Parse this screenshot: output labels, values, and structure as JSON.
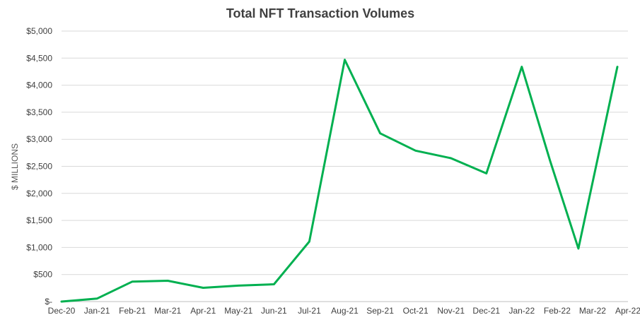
{
  "colors": {
    "series": "#00b050",
    "gridline": "#d9d9d9",
    "text": "#404040"
  },
  "chart_data": {
    "type": "line",
    "title": "Total NFT Transaction Volumes",
    "xlabel": "",
    "ylabel": "$ MILLIONS",
    "categories": [
      "Dec-20",
      "Jan-21",
      "Feb-21",
      "Mar-21",
      "Apr-21",
      "May-21",
      "Jun-21",
      "Jul-21",
      "Aug-21",
      "Sep-21",
      "Oct-21",
      "Nov-21",
      "Dec-21",
      "Jan-22",
      "Feb-22",
      "Mar-22",
      "Apr-22"
    ],
    "x": [
      "Dec-20",
      "Jan-21",
      "Feb-21",
      "Mar-21",
      "Apr-21",
      "May-21",
      "Jun-21",
      "Jul-21",
      "Aug-21",
      "Sep-21",
      "Oct-21",
      "Nov-21",
      "Dec-21",
      "Jan-22",
      "Feb-22",
      "Feb-22/Mar-22",
      "Mar-22/Apr-22"
    ],
    "series": [
      {
        "name": "",
        "values": [
          0,
          55,
          370,
          385,
          255,
          295,
          320,
          1110,
          4470,
          3110,
          2790,
          2650,
          2370,
          4340,
          2600,
          980,
          4340
        ]
      }
    ],
    "x_positions": [
      0,
      1,
      2,
      3,
      4,
      5,
      6,
      7,
      8,
      9,
      10,
      11,
      12,
      13,
      13.8,
      14.6,
      15.7
    ],
    "y_ticks": [
      0,
      500,
      1000,
      1500,
      2000,
      2500,
      3000,
      3500,
      4000,
      4500,
      5000
    ],
    "y_tick_labels": [
      "$-",
      "$500",
      "$1,000",
      "$1,500",
      "$2,000",
      "$2,500",
      "$3,000",
      "$3,500",
      "$4,000",
      "$4,500",
      "$5,000"
    ],
    "ylim": [
      0,
      5000
    ],
    "grid": true,
    "legend": "none"
  }
}
